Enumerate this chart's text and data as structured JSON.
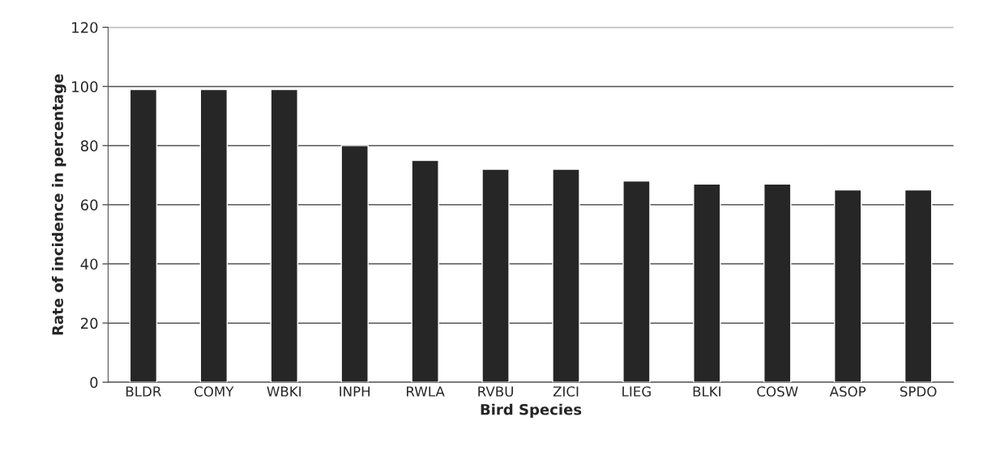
{
  "chart_data": {
    "type": "bar",
    "xlabel": "Bird Species",
    "ylabel": "Rate of incidence in percentage",
    "categories": [
      "BLDR",
      "COMY",
      "WBKI",
      "INPH",
      "RWLA",
      "RVBU",
      "ZICI",
      "LIEG",
      "BLKI",
      "COSW",
      "ASOP",
      "SPDO"
    ],
    "values": [
      99,
      99,
      99,
      80,
      75,
      72,
      72,
      68,
      67,
      67,
      65,
      65
    ],
    "color": "#262626",
    "ylim": [
      0,
      120
    ],
    "yticks": [
      0,
      20,
      40,
      60,
      80,
      100,
      120
    ],
    "grid": "y"
  }
}
